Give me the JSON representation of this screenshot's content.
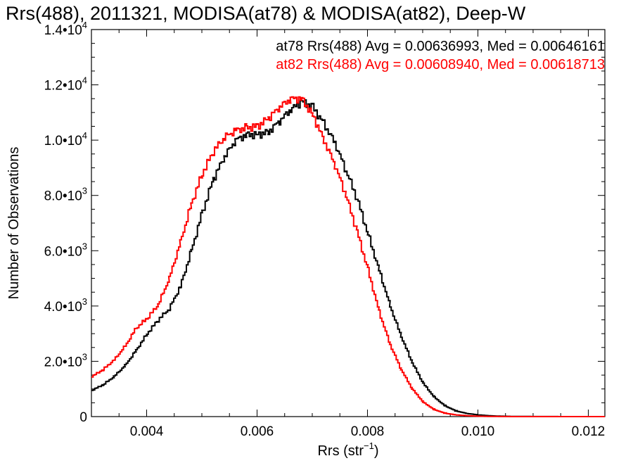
{
  "chart_data": {
    "type": "line",
    "step": true,
    "title": "Rrs(488), 2011321, MODISA(at78) & MODISA(at82), Deep-W",
    "xlabel_main": "Rrs (str",
    "xlabel_sup": "−1",
    "xlabel_tail": ")",
    "ylabel": "Number of Observations",
    "xlim": [
      0.003,
      0.0123
    ],
    "ylim": [
      0,
      14000
    ],
    "xticks": [
      {
        "value": 0.004,
        "label": "0.004"
      },
      {
        "value": 0.006,
        "label": "0.006"
      },
      {
        "value": 0.008,
        "label": "0.008"
      },
      {
        "value": 0.01,
        "label": "0.010"
      },
      {
        "value": 0.012,
        "label": "0.012"
      }
    ],
    "yticks": [
      {
        "value": 0,
        "mant": "0",
        "exp": ""
      },
      {
        "value": 2000,
        "mant": "2.0•10",
        "exp": "3"
      },
      {
        "value": 4000,
        "mant": "4.0•10",
        "exp": "3"
      },
      {
        "value": 6000,
        "mant": "6.0•10",
        "exp": "3"
      },
      {
        "value": 8000,
        "mant": "8.0•10",
        "exp": "3"
      },
      {
        "value": 10000,
        "mant": "1.0•10",
        "exp": "4"
      },
      {
        "value": 12000,
        "mant": "1.2•10",
        "exp": "4"
      },
      {
        "value": 14000,
        "mant": "1.4•10",
        "exp": "4"
      }
    ],
    "series": [
      {
        "legend": "at78 Rrs(488) Avg = 0.00636993, Med = 0.00646161",
        "color": "#000000",
        "points": [
          [
            0.003,
            950
          ],
          [
            0.0032,
            1150
          ],
          [
            0.0034,
            1450
          ],
          [
            0.0036,
            1850
          ],
          [
            0.0038,
            2400
          ],
          [
            0.004,
            3000
          ],
          [
            0.0042,
            3500
          ],
          [
            0.0044,
            3900
          ],
          [
            0.0046,
            4700
          ],
          [
            0.0048,
            6000
          ],
          [
            0.005,
            7400
          ],
          [
            0.0052,
            8600
          ],
          [
            0.0054,
            9400
          ],
          [
            0.0056,
            10000
          ],
          [
            0.0058,
            10200
          ],
          [
            0.006,
            10200
          ],
          [
            0.0062,
            10300
          ],
          [
            0.0064,
            10700
          ],
          [
            0.0066,
            11100
          ],
          [
            0.0068,
            11400
          ],
          [
            0.007,
            11200
          ],
          [
            0.0072,
            10600
          ],
          [
            0.0074,
            9900
          ],
          [
            0.0076,
            8900
          ],
          [
            0.0078,
            7900
          ],
          [
            0.008,
            6600
          ],
          [
            0.0082,
            5300
          ],
          [
            0.0084,
            4000
          ],
          [
            0.0086,
            2900
          ],
          [
            0.0088,
            1950
          ],
          [
            0.009,
            1200
          ],
          [
            0.0092,
            700
          ],
          [
            0.0094,
            380
          ],
          [
            0.0096,
            200
          ],
          [
            0.0098,
            110
          ],
          [
            0.01,
            60
          ],
          [
            0.0102,
            30
          ],
          [
            0.0104,
            15
          ],
          [
            0.0106,
            8
          ],
          [
            0.011,
            3
          ],
          [
            0.0115,
            1
          ],
          [
            0.0123,
            0
          ]
        ]
      },
      {
        "legend": "at82 Rrs(488) Avg = 0.00608940, Med = 0.00618713",
        "color": "#ff0000",
        "points": [
          [
            0.003,
            1450
          ],
          [
            0.0032,
            1700
          ],
          [
            0.0034,
            2050
          ],
          [
            0.0036,
            2550
          ],
          [
            0.0038,
            3200
          ],
          [
            0.004,
            3550
          ],
          [
            0.0042,
            4050
          ],
          [
            0.0044,
            5000
          ],
          [
            0.0046,
            6300
          ],
          [
            0.0048,
            7700
          ],
          [
            0.005,
            8800
          ],
          [
            0.0052,
            9600
          ],
          [
            0.0054,
            10100
          ],
          [
            0.0056,
            10350
          ],
          [
            0.0058,
            10450
          ],
          [
            0.006,
            10500
          ],
          [
            0.0062,
            10800
          ],
          [
            0.0064,
            11200
          ],
          [
            0.0066,
            11500
          ],
          [
            0.0068,
            11500
          ],
          [
            0.007,
            10900
          ],
          [
            0.0072,
            10000
          ],
          [
            0.0074,
            9100
          ],
          [
            0.0076,
            8000
          ],
          [
            0.0078,
            6700
          ],
          [
            0.008,
            5300
          ],
          [
            0.0082,
            3800
          ],
          [
            0.0084,
            2600
          ],
          [
            0.0086,
            1700
          ],
          [
            0.0088,
            1000
          ],
          [
            0.009,
            520
          ],
          [
            0.0092,
            250
          ],
          [
            0.0094,
            120
          ],
          [
            0.0096,
            60
          ],
          [
            0.0098,
            30
          ],
          [
            0.01,
            15
          ],
          [
            0.0102,
            8
          ],
          [
            0.0104,
            3
          ],
          [
            0.0106,
            1
          ],
          [
            0.011,
            0
          ],
          [
            0.0115,
            0
          ],
          [
            0.0123,
            0
          ]
        ]
      }
    ]
  }
}
